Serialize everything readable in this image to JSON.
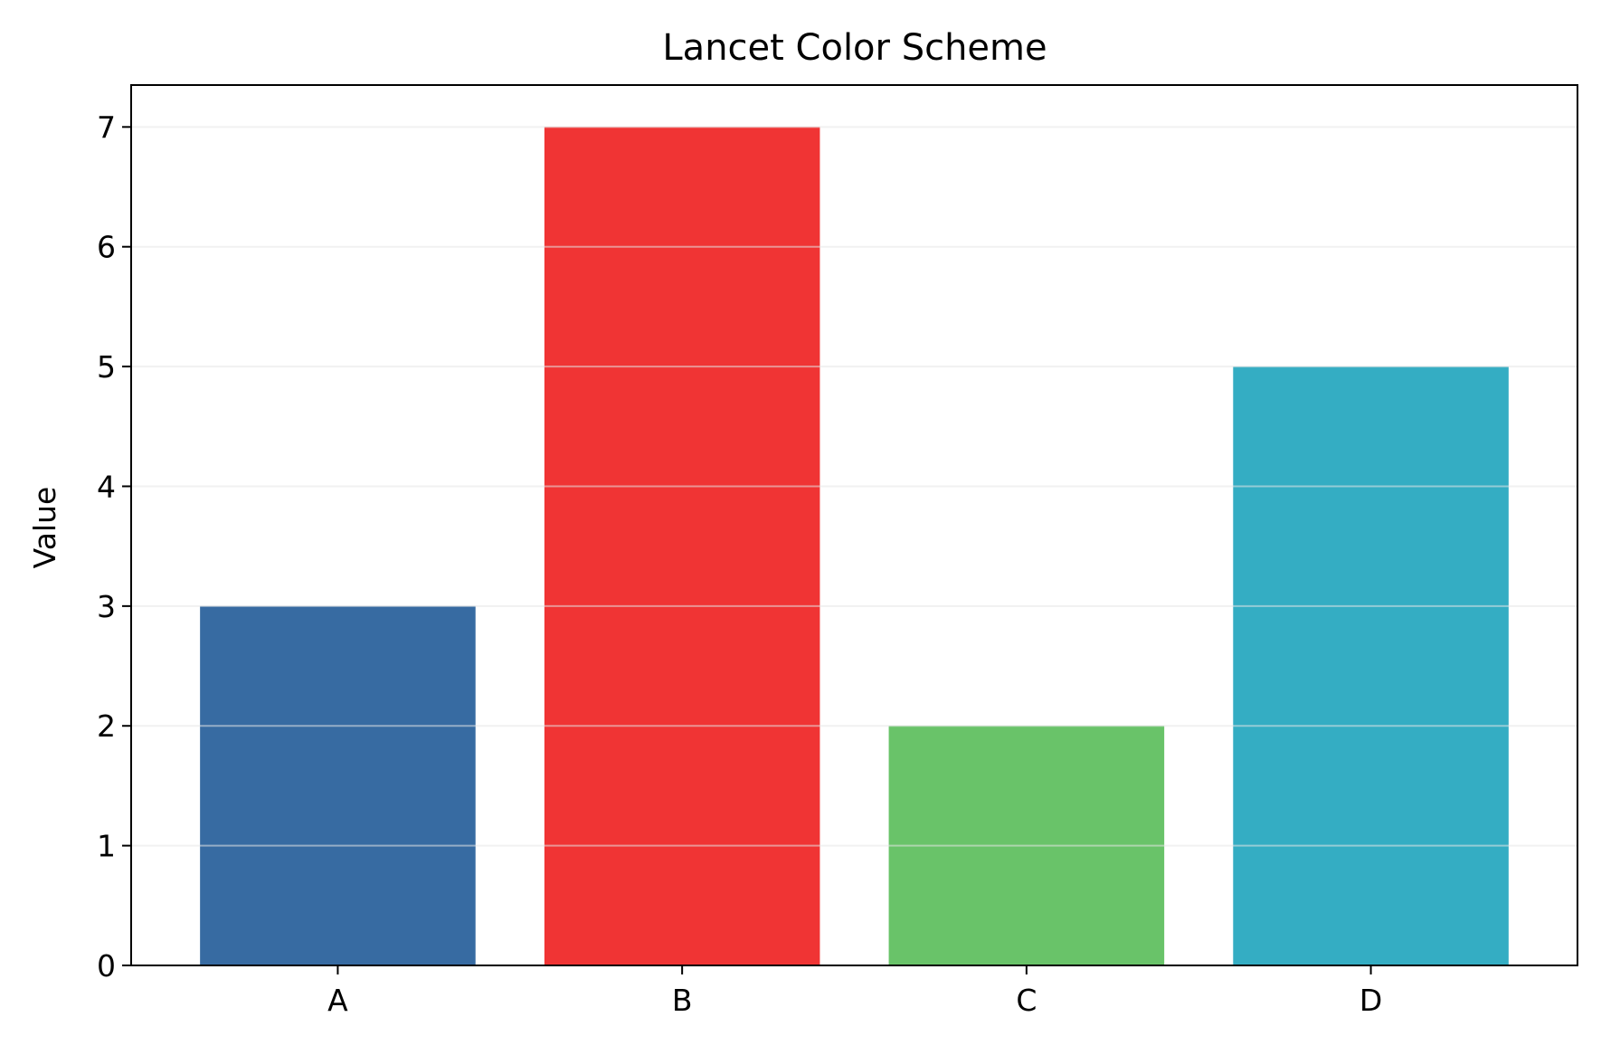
{
  "chart_data": {
    "type": "bar",
    "title": "Lancet Color Scheme",
    "xlabel": "",
    "ylabel": "Value",
    "categories": [
      "A",
      "B",
      "C",
      "D"
    ],
    "values": [
      3,
      7,
      2,
      5
    ],
    "colors": [
      "#376BA2",
      "#F03434",
      "#69C369",
      "#34ADC3"
    ],
    "ylim": [
      0,
      7.35
    ],
    "yticks": [
      0,
      1,
      2,
      3,
      4,
      5,
      6,
      7
    ],
    "grid": "y-axis",
    "legend": "none"
  }
}
